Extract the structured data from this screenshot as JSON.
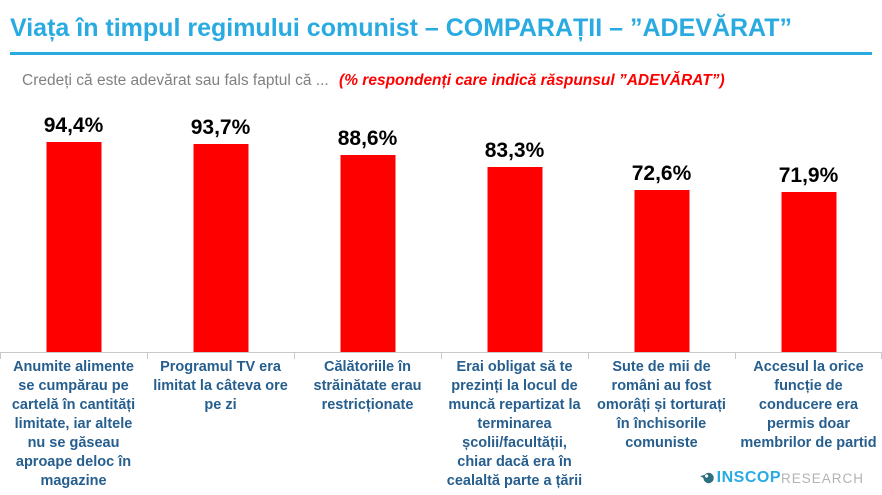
{
  "header": {
    "title": "Viața în timpul regimului comunist – COMPARAȚII – ”ADEVĂRAT”"
  },
  "subtitle": {
    "question": "Credeți că este adevărat sau fals faptul că ...",
    "note": "(% respondenți care indică răspunsul ”ADEVĂRAT”)"
  },
  "chart_data": {
    "type": "bar",
    "title": "Viața în timpul regimului comunist – COMPARAȚII – ”ADEVĂRAT”",
    "subtitle": "Credeți că este adevărat sau fals faptul că ... (% respondenți care indică răspunsul ”ADEVĂRAT”)",
    "categories": [
      "Anumite alimente se cumpărau pe cartelă în cantități limitate, iar altele nu se găseau aproape deloc în magazine",
      "Programul TV era limitat la câteva ore pe zi",
      "Călătoriile în străinătate erau restricționate",
      "Erai obligat să te prezinți la locul de muncă repartizat la terminarea școlii/facultății, chiar dacă era în cealaltă parte a țării",
      "Sute de mii de români au fost omorâți și torturați în închisorile comuniste",
      "Accesul la orice funcție de conducere era permis doar membrilor de partid"
    ],
    "values": [
      94.4,
      93.7,
      88.6,
      83.3,
      72.6,
      71.9
    ],
    "value_labels": [
      "94,4%",
      "93,7%",
      "88,6%",
      "83,3%",
      "72,6%",
      "71,9%"
    ],
    "xlabel": "",
    "ylabel": "% respondenți care indică răspunsul ADEVĂRAT",
    "ylim": [
      0,
      100
    ],
    "grid": false,
    "legend": false,
    "bar_color": "#ff0000",
    "value_label_color": "#000000",
    "category_label_color": "#265e8e"
  },
  "colors": {
    "accent_blue": "#29abe2",
    "note_red": "#ff0000",
    "subtitle_gray": "#808080",
    "axis_gray": "#c9c9c9"
  },
  "logo": {
    "name": "INSCOP",
    "suffix": "RESEARCH"
  }
}
